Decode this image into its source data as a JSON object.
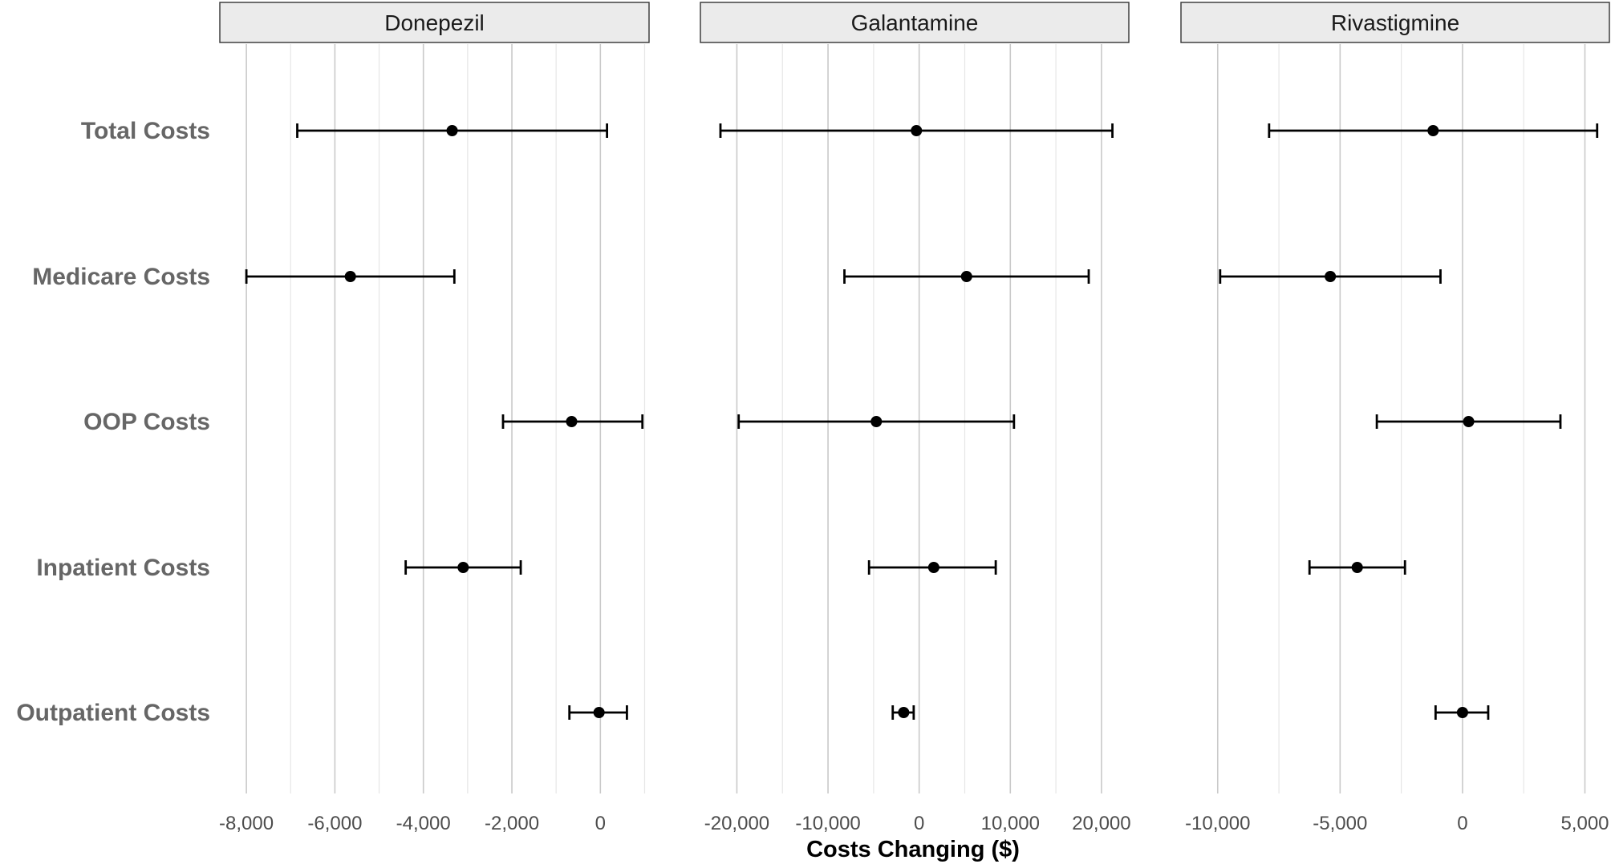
{
  "chart_data": {
    "type": "scatter",
    "subtype": "forest-plot-with-error-bars",
    "xlabel": "Costs Changing ($)",
    "ylabel": "",
    "title": "",
    "categories": [
      "Total Costs",
      "Medicare Costs",
      "OOP Costs",
      "Inpatient Costs",
      "Outpatient Costs"
    ],
    "grid": true,
    "legend": "none",
    "colors": {
      "point": "#000000",
      "strip_fill": "#ebebeb",
      "label": "#666666"
    },
    "panels": [
      {
        "name": "Donepezil",
        "xlim": [
          -8600,
          1100
        ],
        "major_ticks": [
          -8000,
          -6000,
          -4000,
          -2000,
          0
        ],
        "tick_labels": [
          "-8,000",
          "-6,000",
          "-4,000",
          "-2,000",
          "0"
        ],
        "minor_ticks": [
          -7000,
          -5000,
          -3000,
          -1000,
          1000
        ],
        "points": [
          {
            "category": "Total Costs",
            "estimate": -3350,
            "lower": -6850,
            "upper": 150
          },
          {
            "category": "Medicare Costs",
            "estimate": -5650,
            "lower": -8000,
            "upper": -3300
          },
          {
            "category": "OOP Costs",
            "estimate": -650,
            "lower": -2200,
            "upper": 950
          },
          {
            "category": "Inpatient Costs",
            "estimate": -3100,
            "lower": -4400,
            "upper": -1800
          },
          {
            "category": "Outpatient Costs",
            "estimate": -30,
            "lower": -700,
            "upper": 600
          }
        ]
      },
      {
        "name": "Galantamine",
        "xlim": [
          -24000,
          23000
        ],
        "major_ticks": [
          -20000,
          -10000,
          0,
          10000,
          20000
        ],
        "tick_labels": [
          "-20,000",
          "-10,000",
          "0",
          "10,000",
          "20,000"
        ],
        "minor_ticks": [
          -15000,
          -5000,
          5000,
          15000
        ],
        "points": [
          {
            "category": "Total Costs",
            "estimate": -300,
            "lower": -21800,
            "upper": 21200
          },
          {
            "category": "Medicare Costs",
            "estimate": 5200,
            "lower": -8200,
            "upper": 18600
          },
          {
            "category": "OOP Costs",
            "estimate": -4700,
            "lower": -19800,
            "upper": 10400
          },
          {
            "category": "Inpatient Costs",
            "estimate": 1600,
            "lower": -5500,
            "upper": 8400
          },
          {
            "category": "Outpatient Costs",
            "estimate": -1700,
            "lower": -2900,
            "upper": -600
          }
        ]
      },
      {
        "name": "Rivastigmine",
        "xlim": [
          -11500,
          6000
        ],
        "major_ticks": [
          -10000,
          -5000,
          0,
          5000
        ],
        "tick_labels": [
          "-10,000",
          "-5,000",
          "0",
          "5,000"
        ],
        "minor_ticks": [
          -7500,
          -2500,
          2500
        ],
        "points": [
          {
            "category": "Total Costs",
            "estimate": -1200,
            "lower": -7900,
            "upper": 5500
          },
          {
            "category": "Medicare Costs",
            "estimate": -5400,
            "lower": -9900,
            "upper": -900
          },
          {
            "category": "OOP Costs",
            "estimate": 250,
            "lower": -3500,
            "upper": 4000
          },
          {
            "category": "Inpatient Costs",
            "estimate": -4300,
            "lower": -6250,
            "upper": -2350
          },
          {
            "category": "Outpatient Costs",
            "estimate": 0,
            "lower": -1100,
            "upper": 1050
          }
        ]
      }
    ]
  }
}
